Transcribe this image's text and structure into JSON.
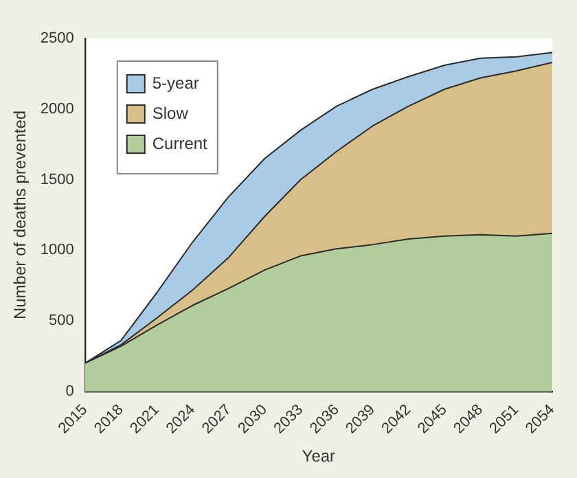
{
  "chart_data": {
    "type": "area",
    "xlabel": "Year",
    "ylabel": "Number of deaths prevented",
    "x": [
      2015,
      2018,
      2021,
      2024,
      2027,
      2030,
      2033,
      2036,
      2039,
      2042,
      2045,
      2048,
      2051,
      2054
    ],
    "series": [
      {
        "name": "5-year",
        "color": "#a9cbe6",
        "values": [
          200,
          360,
          700,
          1060,
          1380,
          1650,
          1850,
          2020,
          2140,
          2230,
          2310,
          2360,
          2370,
          2400
        ]
      },
      {
        "name": "Slow",
        "color": "#d8bf8a",
        "values": [
          200,
          330,
          520,
          720,
          950,
          1240,
          1500,
          1700,
          1880,
          2020,
          2140,
          2220,
          2270,
          2330
        ]
      },
      {
        "name": "Current",
        "color": "#b3cc9c",
        "values": [
          200,
          320,
          470,
          610,
          730,
          860,
          960,
          1010,
          1040,
          1080,
          1100,
          1110,
          1100,
          1120
        ]
      }
    ],
    "xlim": [
      2015,
      2054
    ],
    "xticks": [
      2015,
      2018,
      2021,
      2024,
      2027,
      2030,
      2033,
      2036,
      2039,
      2042,
      2045,
      2048,
      2051,
      2054
    ],
    "ylim": [
      0,
      2500
    ],
    "yticks": [
      0,
      500,
      1000,
      1500,
      2000,
      2500
    ],
    "grid": false,
    "legend": "top left",
    "marker": "none",
    "line_style": "solid"
  }
}
